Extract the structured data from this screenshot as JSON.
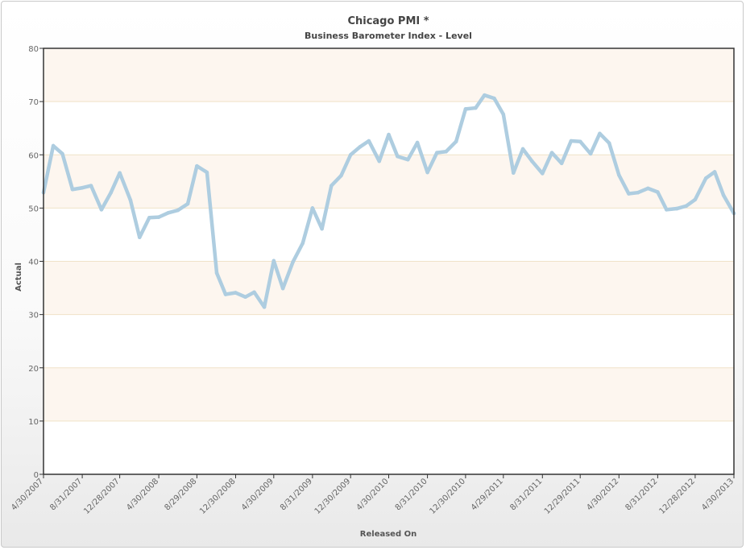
{
  "chart_data": {
    "type": "line",
    "title": "Chicago PMI *",
    "subtitle": "Business Barometer Index - Level",
    "xlabel": "Released On",
    "ylabel": "Actual",
    "ylim": [
      0,
      80
    ],
    "yticks": [
      0,
      10,
      20,
      30,
      40,
      50,
      60,
      70,
      80
    ],
    "grid": true,
    "xticks": [
      "4/30/2007",
      "8/31/2007",
      "12/28/2007",
      "4/30/2008",
      "8/29/2008",
      "12/30/2008",
      "4/30/2009",
      "8/31/2009",
      "12/30/2009",
      "4/30/2010",
      "8/31/2010",
      "12/30/2010",
      "4/29/2011",
      "8/31/2011",
      "12/29/2011",
      "4/30/2012",
      "8/31/2012",
      "12/28/2012",
      "4/30/2013"
    ],
    "series": [
      {
        "color": "#aecde0",
        "x": [
          "4/30/2007",
          "5/31/2007",
          "6/29/2007",
          "7/31/2007",
          "8/31/2007",
          "9/28/2007",
          "10/31/2007",
          "11/30/2007",
          "12/28/2007",
          "1/31/2008",
          "2/29/2008",
          "3/31/2008",
          "4/30/2008",
          "5/30/2008",
          "6/30/2008",
          "7/31/2008",
          "8/29/2008",
          "9/30/2008",
          "10/31/2008",
          "11/28/2008",
          "12/30/2008",
          "1/30/2009",
          "2/27/2009",
          "3/31/2009",
          "4/30/2009",
          "5/29/2009",
          "6/30/2009",
          "7/31/2009",
          "8/31/2009",
          "9/30/2009",
          "10/30/2009",
          "11/30/2009",
          "12/30/2009",
          "1/29/2010",
          "2/26/2010",
          "3/31/2010",
          "4/30/2010",
          "5/28/2010",
          "6/30/2010",
          "7/30/2010",
          "8/31/2010",
          "9/30/2010",
          "10/29/2010",
          "11/30/2010",
          "12/30/2010",
          "1/31/2011",
          "2/28/2011",
          "3/31/2011",
          "4/29/2011",
          "5/31/2011",
          "6/30/2011",
          "7/29/2011",
          "8/31/2011",
          "9/30/2011",
          "10/31/2011",
          "11/30/2011",
          "12/29/2011",
          "1/31/2012",
          "2/29/2012",
          "3/30/2012",
          "4/30/2012",
          "5/31/2012",
          "6/29/2012",
          "7/31/2012",
          "8/31/2012",
          "9/28/2012",
          "10/31/2012",
          "11/30/2012",
          "12/28/2012",
          "1/31/2013",
          "2/28/2013",
          "3/28/2013",
          "4/30/2013"
        ],
        "values": [
          52.9,
          61.7,
          60.2,
          53.5,
          53.8,
          54.2,
          49.7,
          52.9,
          56.6,
          51.5,
          44.5,
          48.2,
          48.3,
          49.1,
          49.6,
          50.8,
          57.9,
          56.7,
          37.8,
          33.8,
          34.1,
          33.3,
          34.2,
          31.4,
          40.1,
          34.9,
          39.9,
          43.4,
          50.0,
          46.1,
          54.2,
          56.1,
          60.0,
          61.5,
          62.6,
          58.8,
          63.8,
          59.7,
          59.1,
          62.3,
          56.7,
          60.4,
          60.6,
          62.5,
          68.6,
          68.8,
          71.2,
          70.6,
          67.6,
          56.6,
          61.1,
          58.8,
          56.5,
          60.4,
          58.4,
          62.6,
          62.5,
          60.2,
          64.0,
          62.2,
          56.2,
          52.7,
          52.9,
          53.7,
          53.0,
          49.7,
          49.9,
          50.4,
          51.6,
          55.6,
          56.8,
          52.4,
          49.0
        ]
      }
    ]
  }
}
